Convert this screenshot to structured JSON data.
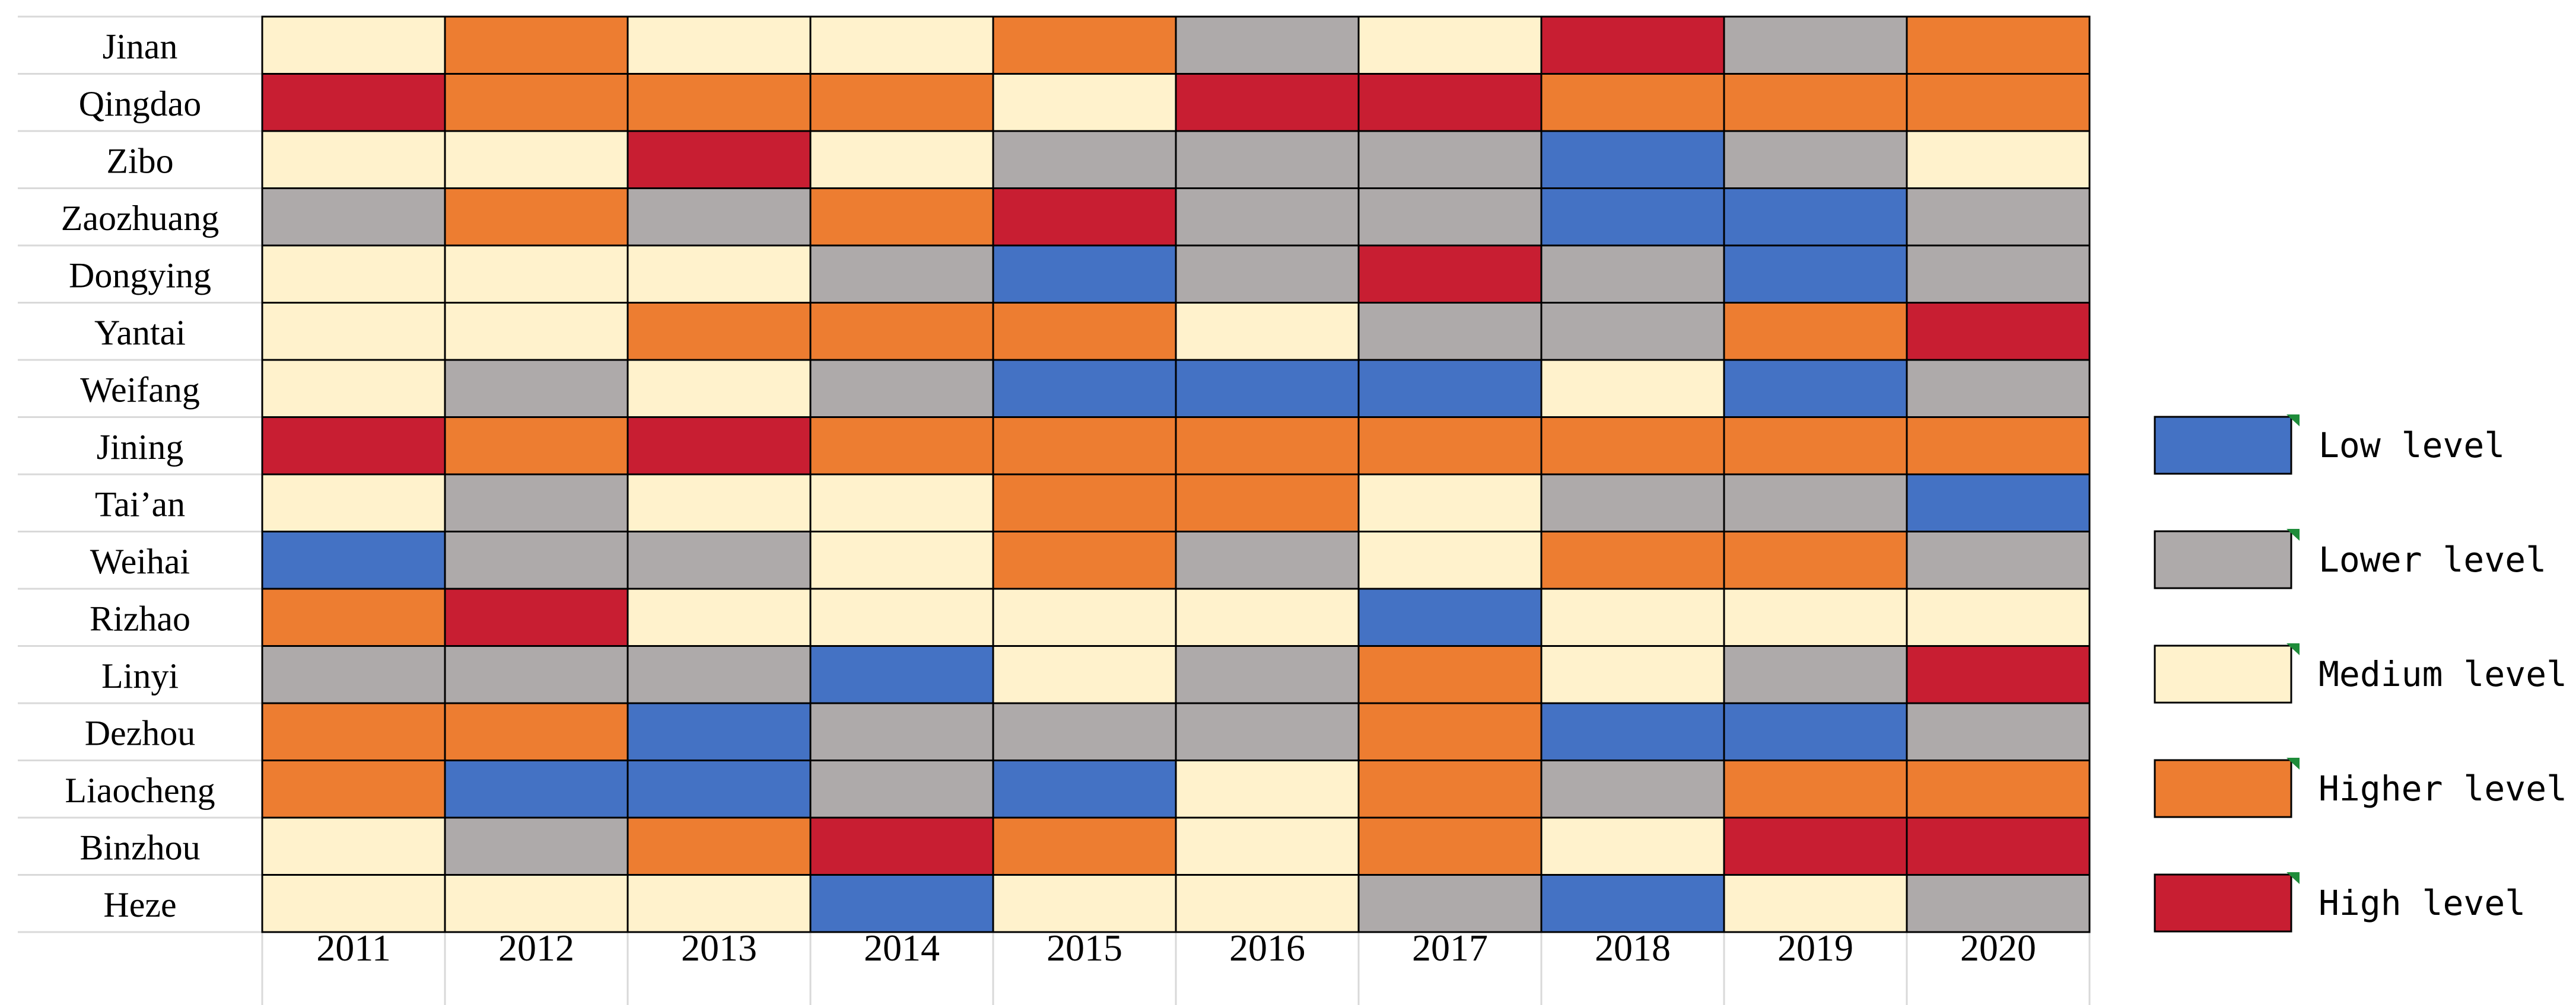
{
  "chart_data": {
    "type": "heatmap",
    "title": "",
    "rows": [
      "Jinan",
      "Qingdao",
      "Zibo",
      "Zaozhuang",
      "Dongying",
      "Yantai",
      "Weifang",
      "Jining",
      "Tai’an",
      "Weihai",
      "Rizhao",
      "Linyi",
      "Dezhou",
      "Liaocheng",
      "Binzhou",
      "Heze"
    ],
    "columns": [
      "2011",
      "2012",
      "2013",
      "2014",
      "2015",
      "2016",
      "2017",
      "2018",
      "2019",
      "2020"
    ],
    "level_names": [
      "Low level",
      "Lower level",
      "Medium level",
      "Higher level",
      "High level"
    ],
    "level_colors": [
      "#4472C4",
      "#AEAAAA",
      "#FFF2CC",
      "#ED7D31",
      "#C81E32"
    ],
    "values": [
      [
        2,
        3,
        2,
        2,
        3,
        1,
        2,
        4,
        1,
        3
      ],
      [
        4,
        3,
        3,
        3,
        2,
        4,
        4,
        3,
        3,
        3
      ],
      [
        2,
        2,
        4,
        2,
        1,
        1,
        1,
        0,
        1,
        2
      ],
      [
        1,
        3,
        1,
        3,
        4,
        1,
        1,
        0,
        0,
        1
      ],
      [
        2,
        2,
        2,
        1,
        0,
        1,
        4,
        1,
        0,
        1
      ],
      [
        2,
        2,
        3,
        3,
        3,
        2,
        1,
        1,
        3,
        4
      ],
      [
        2,
        1,
        2,
        1,
        0,
        0,
        0,
        2,
        0,
        1
      ],
      [
        4,
        3,
        4,
        3,
        3,
        3,
        3,
        3,
        3,
        3
      ],
      [
        2,
        1,
        2,
        2,
        3,
        3,
        2,
        1,
        1,
        0
      ],
      [
        0,
        1,
        1,
        2,
        3,
        1,
        2,
        3,
        3,
        1
      ],
      [
        3,
        4,
        2,
        2,
        2,
        2,
        0,
        2,
        2,
        2
      ],
      [
        1,
        1,
        1,
        0,
        2,
        1,
        3,
        2,
        1,
        4
      ],
      [
        3,
        3,
        0,
        1,
        1,
        1,
        3,
        0,
        0,
        1
      ],
      [
        3,
        0,
        0,
        1,
        0,
        2,
        3,
        1,
        3,
        3
      ],
      [
        2,
        1,
        3,
        4,
        3,
        2,
        3,
        2,
        4,
        4
      ],
      [
        2,
        2,
        2,
        0,
        2,
        2,
        1,
        0,
        2,
        1
      ]
    ],
    "legend": [
      "Low level",
      "Lower level",
      "Medium level",
      "Higher level",
      "High level"
    ],
    "legend_position": "right"
  }
}
